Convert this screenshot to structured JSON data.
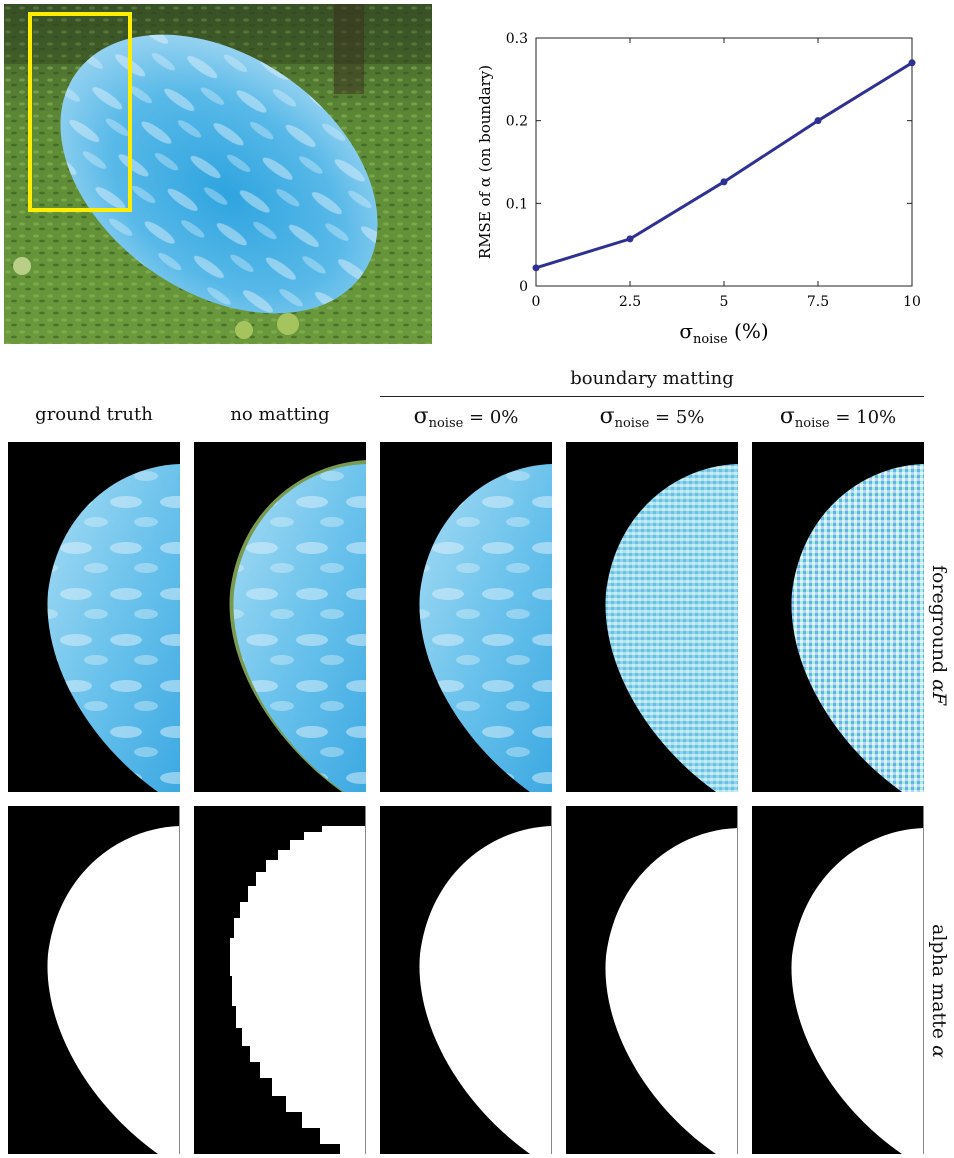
{
  "top_photo": {
    "box_color": "#ffee00"
  },
  "chart_data": {
    "type": "line",
    "title": "",
    "xlabel": "σnoise (%)",
    "xlabel_main": "σ",
    "xlabel_sub": "noise",
    "xlabel_unit": "(%)",
    "ylabel": "RMSE of α (on boundary)",
    "xlim": [
      0,
      10
    ],
    "ylim": [
      0,
      0.3
    ],
    "xticks": [
      "0",
      "2.5",
      "5",
      "7.5",
      "10"
    ],
    "xtick_values": [
      0,
      2.5,
      5,
      7.5,
      10
    ],
    "yticks": [
      "0",
      "0.1",
      "0.2",
      "0.3"
    ],
    "ytick_values": [
      0,
      0.1,
      0.2,
      0.3
    ],
    "grid": false,
    "series": [
      {
        "x": [
          0,
          2.5,
          5,
          7.5,
          10
        ],
        "y": [
          0.022,
          0.057,
          0.126,
          0.2,
          0.27
        ],
        "color": "#2e3192"
      }
    ]
  },
  "group_header": "boundary matting",
  "columns": [
    {
      "label": "ground truth"
    },
    {
      "label": "no matting"
    },
    {
      "sym": "σ",
      "sub": "noise",
      "rest": " = 0%"
    },
    {
      "sym": "σ",
      "sub": "noise",
      "rest": " = 5%"
    },
    {
      "sym": "σ",
      "sub": "noise",
      "rest": " = 10%"
    }
  ],
  "row_labels": {
    "foreground": "foreground",
    "foreground_sym": "αF",
    "alpha": "alpha matte",
    "alpha_sym": "α"
  },
  "colors": {
    "sky_blue": "#5cbce8",
    "dark_blue_line": "#2e3192",
    "grass": "#4e7a2e"
  }
}
